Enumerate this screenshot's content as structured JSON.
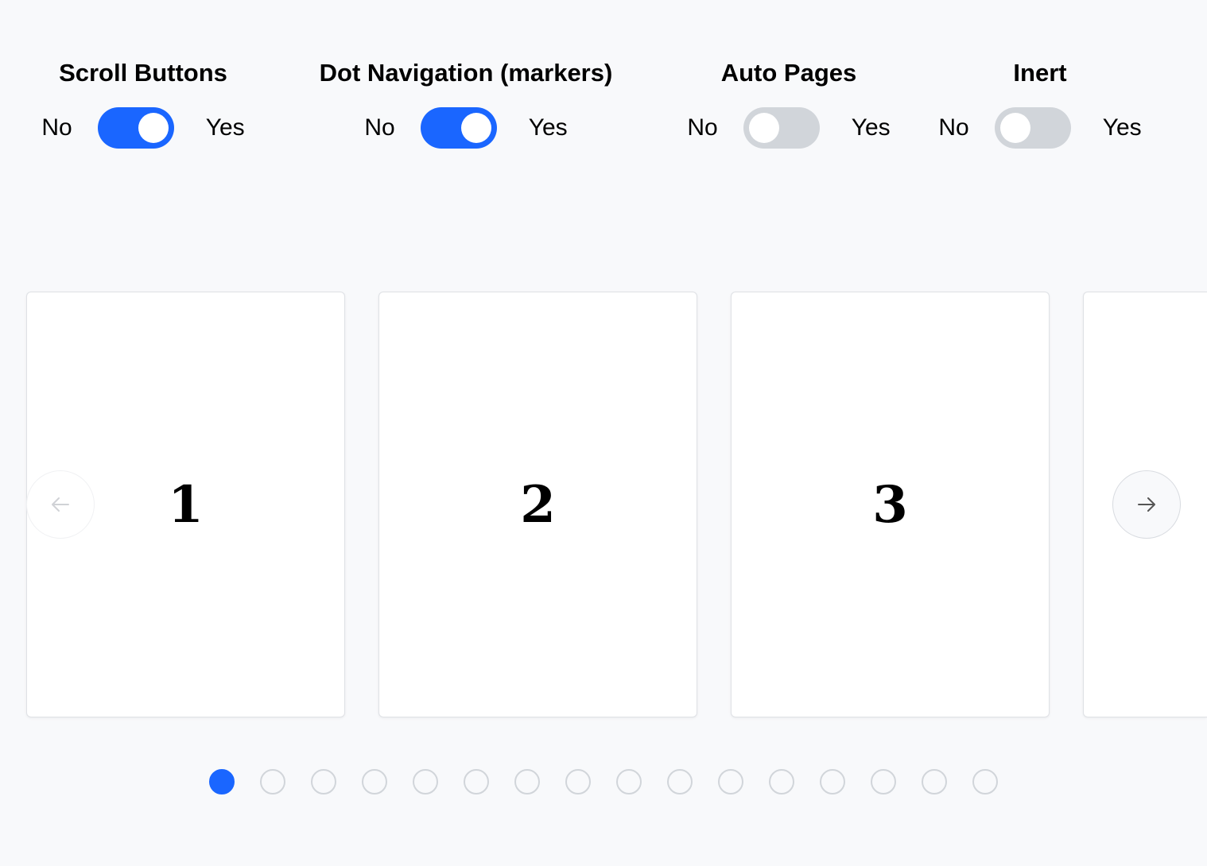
{
  "controls": [
    {
      "title": "Scroll Buttons",
      "no": "No",
      "yes": "Yes",
      "on": true
    },
    {
      "title": "Dot Navigation (markers)",
      "no": "No",
      "yes": "Yes",
      "on": true
    },
    {
      "title": "Auto Pages",
      "no": "No",
      "yes": "Yes",
      "on": false
    },
    {
      "title": "Inert",
      "no": "No",
      "yes": "Yes",
      "on": false
    }
  ],
  "carousel": {
    "slides": [
      "1",
      "2",
      "3",
      ""
    ],
    "prev_icon": "arrow-left-icon",
    "next_icon": "arrow-right-icon",
    "dot_count": 16,
    "active_dot": 0
  },
  "colors": {
    "accent": "#1a66ff",
    "toggle_off": "#d1d5da",
    "background": "#f8f9fb"
  }
}
